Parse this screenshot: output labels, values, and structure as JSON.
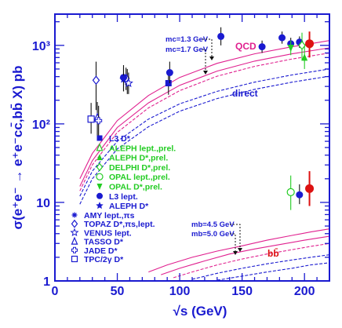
{
  "chart_data": {
    "type": "scatter",
    "xlabel": "√s (GeV)",
    "ylabel": "σ(e⁺e⁻ → e⁺e⁻cc̄,bb̄ X) pb",
    "xlim": [
      0,
      220
    ],
    "ylim": [
      1,
      2500
    ],
    "yscale": "log",
    "x_ticks": [
      "0",
      "50",
      "100",
      "150",
      "200"
    ],
    "x_tick_values": [
      0,
      50,
      100,
      150,
      200
    ],
    "y_ticks": [
      "1",
      "10",
      "10²",
      "10³"
    ],
    "y_tick_values": [
      1,
      10,
      100,
      1000
    ],
    "colors": {
      "axis": "#1a1ad0",
      "qcd": "#e0208f",
      "direct": "#1a1ad0",
      "bb": "#e0208f",
      "green": "#22cc22",
      "red": "#dd1111",
      "black": "#111111"
    },
    "annotations": {
      "qcd_label": "QCD",
      "direct_label": "direct",
      "bb_label": "bb̄",
      "mc_upper": "mc=1.3 GeV",
      "mc_lower": "mc=1.7 GeV",
      "mb_upper": "mb=4.5 GeV",
      "mb_lower": "mb=5.0 GeV"
    },
    "legend_top": [
      {
        "marker": "filled-square",
        "color": "#1a1ad0",
        "label": "L3 D*"
      },
      {
        "marker": "open-triangle",
        "color": "#22cc22",
        "label": "ALEPH lept.,prel."
      },
      {
        "marker": "filled-triangle-up",
        "color": "#22cc22",
        "label": "ALEPH D*,prel."
      },
      {
        "marker": "open-diamond",
        "color": "#22cc22",
        "label": "DELPHI D*,prel."
      },
      {
        "marker": "open-circle",
        "color": "#22cc22",
        "label": "OPAL lept.,prel."
      },
      {
        "marker": "filled-triangle-down",
        "color": "#22cc22",
        "label": "OPAL D*,prel."
      },
      {
        "marker": "filled-circle",
        "color": "#1a1ad0",
        "label": "L3 lept."
      },
      {
        "marker": "filled-star",
        "color": "#1a1ad0",
        "label": "ALEPH D*"
      }
    ],
    "legend_bottom": [
      {
        "marker": "asterisk",
        "label": "AMY lept.,πs"
      },
      {
        "marker": "open-diamond",
        "label": "TOPAZ D*,πs,lept."
      },
      {
        "marker": "open-star",
        "label": "VENUS lept."
      },
      {
        "marker": "open-triangle",
        "label": "TASSO D*"
      },
      {
        "marker": "open-cross",
        "label": "JADE D*"
      },
      {
        "marker": "open-square",
        "label": "TPC/2γ D*"
      }
    ],
    "curves": [
      {
        "name": "QCD",
        "group": "cc",
        "style": "solid",
        "color": "#e0208f",
        "x": [
          20,
          30,
          50,
          75,
          100,
          130,
          160,
          190,
          220
        ],
        "y": [
          20,
          42,
          110,
          230,
          390,
          590,
          780,
          960,
          1150
        ]
      },
      {
        "group": "cc",
        "style": "solid",
        "color": "#e0208f",
        "x": [
          20,
          30,
          50,
          75,
          100,
          130,
          160,
          190,
          220
        ],
        "y": [
          16,
          34,
          90,
          185,
          310,
          470,
          630,
          780,
          930
        ]
      },
      {
        "group": "cc",
        "style": "dashed",
        "color": "#e0208f",
        "x": [
          20,
          30,
          50,
          75,
          100,
          130,
          160,
          190,
          220
        ],
        "y": [
          14,
          30,
          78,
          160,
          265,
          405,
          540,
          670,
          800
        ]
      },
      {
        "name": "direct",
        "group": "cc",
        "style": "dashed",
        "color": "#1a1ad0",
        "x": [
          20,
          30,
          50,
          75,
          100,
          130,
          160,
          190,
          220
        ],
        "y": [
          12,
          25,
          60,
          115,
          180,
          260,
          340,
          420,
          500
        ]
      },
      {
        "group": "cc",
        "style": "dashed",
        "color": "#1a1ad0",
        "x": [
          20,
          30,
          50,
          75,
          100,
          130,
          160,
          190,
          220
        ],
        "y": [
          9.5,
          20,
          48,
          92,
          145,
          210,
          275,
          340,
          405
        ]
      },
      {
        "name": "bb",
        "group": "bb",
        "style": "solid",
        "color": "#e0208f",
        "x": [
          75,
          90,
          110,
          130,
          150,
          170,
          190,
          205,
          220
        ],
        "y": [
          1.3,
          1.6,
          2.0,
          2.4,
          2.8,
          3.3,
          3.8,
          4.2,
          4.6
        ]
      },
      {
        "group": "bb",
        "style": "solid",
        "color": "#e0208f",
        "x": [
          85,
          100,
          120,
          140,
          160,
          180,
          200,
          220
        ],
        "y": [
          1.2,
          1.45,
          1.8,
          2.2,
          2.55,
          2.9,
          3.3,
          3.7
        ]
      },
      {
        "group": "bb",
        "style": "dashed",
        "color": "#e0208f",
        "x": [
          95,
          110,
          130,
          150,
          170,
          190,
          205,
          220
        ],
        "y": [
          1.1,
          1.3,
          1.6,
          1.9,
          2.2,
          2.5,
          2.75,
          3.0
        ]
      },
      {
        "group": "bb",
        "style": "dashed",
        "color": "#1a1ad0",
        "x": [
          110,
          130,
          150,
          170,
          190,
          205,
          220
        ],
        "y": [
          1.05,
          1.25,
          1.45,
          1.65,
          1.85,
          2.0,
          2.15
        ]
      },
      {
        "group": "bb",
        "style": "dashed",
        "color": "#1a1ad0",
        "x": [
          130,
          150,
          170,
          190,
          205,
          220
        ],
        "y": [
          1.02,
          1.15,
          1.3,
          1.45,
          1.6,
          1.7
        ]
      }
    ],
    "points": [
      {
        "series": "TPC/2γ D*",
        "marker": "open-square",
        "color": "#1a1ad0",
        "x": 29,
        "y": 115,
        "ylo": 75,
        "yhi": 185
      },
      {
        "series": "AMY lept.,πs",
        "marker": "asterisk",
        "color": "#1a1ad0",
        "x": 58,
        "y": 340,
        "ylo": 240,
        "yhi": 500
      },
      {
        "series": "TOPAZ D*,πs,lept.",
        "marker": "open-diamond",
        "color": "#1a1ad0",
        "x": 33,
        "y": 360,
        "ylo": 150,
        "yhi": 620
      },
      {
        "series": "TOPAZ D*,πs,lept.",
        "marker": "open-diamond",
        "color": "#1a1ad0",
        "x": 57,
        "y": 380,
        "ylo": 270,
        "yhi": 520
      },
      {
        "series": "VENUS lept.",
        "marker": "open-star",
        "color": "#1a1ad0",
        "x": 59,
        "y": 330,
        "ylo": 240,
        "yhi": 450
      },
      {
        "series": "TASSO D*",
        "marker": "open-triangle",
        "color": "#1a1ad0",
        "x": 34,
        "y": 120,
        "ylo": 70,
        "yhi": 190
      },
      {
        "series": "JADE D*",
        "marker": "open-cross",
        "color": "#1a1ad0",
        "x": 35,
        "y": 110,
        "ylo": 70,
        "yhi": 170
      },
      {
        "series": "L3 D*",
        "marker": "filled-square",
        "color": "#1a1ad0",
        "x": 91,
        "y": 330,
        "ylo": 235,
        "yhi": 450
      },
      {
        "series": "L3 lept.",
        "marker": "filled-circle",
        "color": "#1a1ad0",
        "x": 55,
        "y": 390,
        "ylo": 260,
        "yhi": 560
      },
      {
        "series": "L3 lept.",
        "marker": "filled-circle",
        "color": "#1a1ad0",
        "x": 92,
        "y": 450,
        "ylo": 330,
        "yhi": 620
      },
      {
        "series": "L3 lept.",
        "marker": "filled-circle",
        "color": "#1a1ad0",
        "x": 133,
        "y": 1300,
        "ylo": 1000,
        "yhi": 1700
      },
      {
        "series": "L3 lept.",
        "marker": "filled-circle",
        "color": "#1a1ad0",
        "x": 166,
        "y": 960,
        "ylo": 800,
        "yhi": 1150
      },
      {
        "series": "L3 lept.",
        "marker": "filled-circle",
        "color": "#1a1ad0",
        "x": 182,
        "y": 1250,
        "ylo": 1050,
        "yhi": 1500
      },
      {
        "series": "L3 lept.",
        "marker": "filled-circle",
        "color": "#1a1ad0",
        "x": 189,
        "y": 1050,
        "ylo": 880,
        "yhi": 1250
      },
      {
        "series": "L3 lept.",
        "marker": "filled-circle",
        "color": "#1a1ad0",
        "x": 196,
        "y": 1100,
        "ylo": 930,
        "yhi": 1300
      },
      {
        "series": "L3 lept.",
        "marker": "filled-circle",
        "color": "#1a1ad0",
        "x": 196,
        "y": 12.5,
        "ylo": 9.5,
        "yhi": 17
      },
      {
        "series": "ALEPH D*",
        "marker": "filled-star",
        "color": "#1a1ad0",
        "x": 55,
        "y": 370,
        "ylo": 260,
        "yhi": 520
      },
      {
        "series": "ALEPH D*,prel.",
        "marker": "filled-triangle-up",
        "color": "#22cc22",
        "x": 200,
        "y": 700,
        "ylo": 500,
        "yhi": 980
      },
      {
        "series": "OPAL D*,prel.",
        "marker": "filled-triangle-down",
        "color": "#22cc22",
        "x": 189,
        "y": 930,
        "ylo": 750,
        "yhi": 1150
      },
      {
        "series": "OPAL lept.,prel.",
        "marker": "open-circle",
        "color": "#22cc22",
        "x": 189,
        "y": 13.5,
        "ylo": 8,
        "yhi": 22
      },
      {
        "series": "DELPHI D*,prel.",
        "marker": "open-diamond",
        "color": "#22cc22",
        "x": 198,
        "y": 1000,
        "ylo": 650,
        "yhi": 1450
      },
      {
        "series": "red",
        "marker": "filled-circle",
        "color": "#dd1111",
        "x": 204,
        "y": 1050,
        "ylo": 700,
        "yhi": 1500
      },
      {
        "series": "red",
        "marker": "filled-circle",
        "color": "#dd1111",
        "x": 204,
        "y": 15,
        "ylo": 9,
        "yhi": 25
      }
    ]
  }
}
